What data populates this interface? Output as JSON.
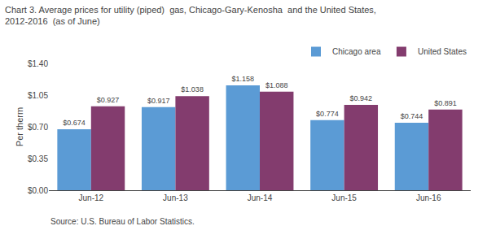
{
  "chart_data": {
    "type": "bar",
    "title": "Chart 3. Average prices for utility (piped)  gas, Chicago-Gary-Kenosha  and the United States,\n2012-2016  (as of June)",
    "ylabel": "Per therm",
    "annotations": [
      {
        "text": "Source: U.S. Bureau of Labor Statistics."
      }
    ],
    "categories": [
      "Jun-12",
      "Jun-13",
      "Jun-14",
      "Jun-15",
      "Jun-16"
    ],
    "series": [
      {
        "name": "Chicago area",
        "color": "#5B9BD5",
        "values": [
          0.674,
          0.917,
          1.158,
          0.774,
          0.744
        ],
        "value_labels": [
          "$0.674",
          "$0.917",
          "$1.158",
          "$0.774",
          "$0.744"
        ]
      },
      {
        "name": "United States",
        "color": "#833C6E",
        "values": [
          0.927,
          1.038,
          1.088,
          0.942,
          0.891
        ],
        "value_labels": [
          "$0.927",
          "$1.038",
          "$1.088",
          "$0.942",
          "$0.891"
        ]
      }
    ],
    "ylim": [
      0,
      1.4
    ],
    "yticks": [
      {
        "value": 0,
        "label": "$0.00"
      },
      {
        "value": 0.35,
        "label": "$0.35"
      },
      {
        "value": 0.7,
        "label": "$0.70"
      },
      {
        "value": 1.05,
        "label": "$1.05"
      },
      {
        "value": 1.4,
        "label": "$1.40"
      }
    ],
    "data_labels": true,
    "legend": "upper right",
    "grid": false
  }
}
